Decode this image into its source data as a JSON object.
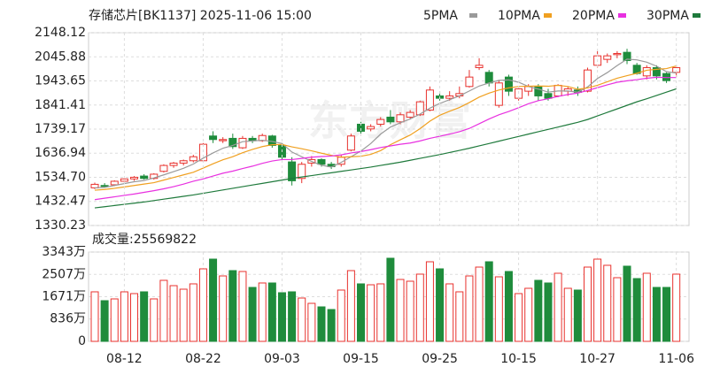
{
  "chart_data": [
    {
      "type": "candlestick",
      "title": "存储芯片[BK1137] 2025-11-06 15:00",
      "watermark": "东方财富",
      "up_color": "#e8322e",
      "down_color": "#1f8c3c",
      "open": [
        1490,
        1500,
        1503,
        1518,
        1528,
        1540,
        1530,
        1560,
        1585,
        1595,
        1605,
        1605,
        1710,
        1690,
        1700,
        1660,
        1700,
        1690,
        1710,
        1670,
        1600,
        1530,
        1595,
        1610,
        1590,
        1590,
        1650,
        1760,
        1740,
        1760,
        1790,
        1770,
        1790,
        1800,
        1820,
        1880,
        1870,
        1880,
        1920,
        2000,
        1980,
        1840,
        1960,
        1870,
        1900,
        1920,
        1890,
        1880,
        1900,
        1905,
        1900,
        2010,
        2035,
        2055,
        2065,
        2010,
        1965,
        2000,
        1975,
        1980
      ],
      "high": [
        1512,
        1510,
        1522,
        1532,
        1540,
        1548,
        1552,
        1590,
        1600,
        1610,
        1630,
        1680,
        1730,
        1705,
        1720,
        1710,
        1710,
        1720,
        1715,
        1680,
        1620,
        1600,
        1625,
        1615,
        1600,
        1630,
        1720,
        1770,
        1760,
        1790,
        1820,
        1810,
        1820,
        1860,
        1920,
        1900,
        1900,
        1920,
        1990,
        2040,
        1990,
        1945,
        1970,
        1920,
        1930,
        1930,
        1910,
        1930,
        1920,
        1920,
        2000,
        2070,
        2060,
        2070,
        2080,
        2020,
        2010,
        2010,
        1980,
        2010
      ],
      "low": [
        1485,
        1492,
        1498,
        1512,
        1520,
        1525,
        1525,
        1555,
        1575,
        1585,
        1598,
        1600,
        1680,
        1680,
        1655,
        1655,
        1680,
        1685,
        1660,
        1610,
        1500,
        1510,
        1580,
        1580,
        1570,
        1580,
        1645,
        1720,
        1730,
        1750,
        1760,
        1760,
        1780,
        1795,
        1815,
        1860,
        1860,
        1870,
        1915,
        1990,
        1920,
        1830,
        1880,
        1860,
        1880,
        1860,
        1860,
        1875,
        1880,
        1880,
        1895,
        2000,
        2020,
        2040,
        2015,
        1970,
        1950,
        1950,
        1935,
        1960
      ],
      "close": [
        1505,
        1496,
        1518,
        1528,
        1535,
        1530,
        1548,
        1585,
        1595,
        1605,
        1622,
        1675,
        1695,
        1695,
        1665,
        1700,
        1690,
        1712,
        1670,
        1620,
        1520,
        1590,
        1610,
        1590,
        1580,
        1620,
        1710,
        1730,
        1750,
        1780,
        1770,
        1800,
        1810,
        1855,
        1905,
        1870,
        1880,
        1890,
        1960,
        2010,
        1935,
        1935,
        1900,
        1910,
        1920,
        1880,
        1870,
        1925,
        1910,
        1895,
        1990,
        2050,
        2050,
        2060,
        2030,
        1975,
        2000,
        1965,
        1945,
        2000
      ],
      "ylim": [
        1330.23,
        2148.12
      ],
      "yticks": [
        1330.23,
        1432.47,
        {
          "value": 1534.7,
          "label": "1534.70"
        },
        1636.94,
        1739.17,
        1841.41,
        1943.65,
        2045.88,
        2148.12
      ],
      "grid": true,
      "series": [
        {
          "name": "5PMA",
          "color": "#9a9a9a",
          "values": [
            1490,
            1492,
            1500,
            1508,
            1516,
            1521,
            1532,
            1545,
            1559,
            1573,
            1591,
            1616,
            1638,
            1658,
            1670,
            1686,
            1689,
            1692,
            1687,
            1678,
            1642,
            1622,
            1602,
            1586,
            1578,
            1598,
            1622,
            1646,
            1678,
            1718,
            1748,
            1766,
            1782,
            1803,
            1828,
            1848,
            1864,
            1880,
            1901,
            1922,
            1935,
            1946,
            1948,
            1938,
            1920,
            1909,
            1896,
            1901,
            1901,
            1896,
            1918,
            1954,
            1979,
            2009,
            2036,
            2033,
            2023,
            2006,
            1983,
            1977
          ]
        },
        {
          "name": "10PMA",
          "color": "#f0a020",
          "values": [
            1480,
            1483,
            1488,
            1494,
            1500,
            1506,
            1512,
            1523,
            1534,
            1545,
            1556,
            1574,
            1592,
            1609,
            1622,
            1639,
            1653,
            1665,
            1673,
            1674,
            1664,
            1656,
            1647,
            1637,
            1628,
            1620,
            1622,
            1624,
            1632,
            1648,
            1673,
            1694,
            1714,
            1741,
            1773,
            1798,
            1815,
            1831,
            1852,
            1875,
            1892,
            1905,
            1914,
            1920,
            1921,
            1922,
            1921,
            1925,
            1920,
            1908,
            1914,
            1925,
            1940,
            1955,
            1966,
            1976,
            1989,
            1993,
            1996,
            2007
          ]
        },
        {
          "name": "20PMA",
          "color": "#e830e0",
          "values": [
            1440,
            1446,
            1452,
            1458,
            1464,
            1471,
            1478,
            1486,
            1495,
            1506,
            1518,
            1528,
            1540,
            1552,
            1561,
            1572,
            1582,
            1594,
            1604,
            1610,
            1610,
            1615,
            1620,
            1623,
            1625,
            1630,
            1638,
            1644,
            1652,
            1661,
            1668,
            1675,
            1680,
            1689,
            1700,
            1709,
            1718,
            1728,
            1742,
            1762,
            1782,
            1800,
            1814,
            1830,
            1847,
            1860,
            1868,
            1878,
            1886,
            1892,
            1903,
            1915,
            1927,
            1938,
            1944,
            1949,
            1955,
            1959,
            1958,
            1958
          ]
        },
        {
          "name": "30PMA",
          "color": "#1f7a3c",
          "values": [
            1405,
            1410,
            1415,
            1420,
            1425,
            1430,
            1436,
            1442,
            1448,
            1454,
            1460,
            1467,
            1474,
            1481,
            1488,
            1495,
            1502,
            1509,
            1516,
            1523,
            1530,
            1536,
            1542,
            1548,
            1554,
            1560,
            1566,
            1572,
            1578,
            1585,
            1592,
            1599,
            1607,
            1615,
            1623,
            1631,
            1640,
            1649,
            1658,
            1668,
            1678,
            1688,
            1698,
            1708,
            1718,
            1728,
            1738,
            1748,
            1758,
            1768,
            1780,
            1795,
            1810,
            1825,
            1840,
            1855,
            1868,
            1882,
            1896,
            1910
          ]
        }
      ]
    },
    {
      "type": "bar",
      "title": "成交量:25569822",
      "categories": [
        null,
        null,
        null,
        "08-12",
        null,
        null,
        null,
        null,
        null,
        null,
        null,
        "08-22",
        null,
        null,
        null,
        null,
        null,
        null,
        null,
        "09-03",
        null,
        null,
        null,
        null,
        null,
        null,
        null,
        "09-15",
        null,
        null,
        null,
        null,
        null,
        null,
        null,
        "09-25",
        null,
        null,
        null,
        null,
        null,
        null,
        null,
        "10-15",
        null,
        null,
        null,
        null,
        null,
        null,
        null,
        "10-27",
        null,
        null,
        null,
        null,
        null,
        null,
        null,
        "11-06"
      ],
      "values": [
        1854,
        1523,
        1589,
        1854,
        1788,
        1854,
        1589,
        2284,
        2085,
        1953,
        2152,
        2714,
        3078,
        2449,
        2648,
        2615,
        2019,
        2185,
        2185,
        1821,
        1854,
        1622,
        1423,
        1291,
        1192,
        1920,
        2648,
        2152,
        2118,
        2152,
        3111,
        2317,
        2251,
        2516,
        2979,
        2714,
        2152,
        1854,
        2449,
        2780,
        2979,
        2416,
        2615,
        1788,
        1986,
        2284,
        2185,
        2549,
        1986,
        1920,
        2780,
        3078,
        2847,
        2383,
        2814,
        2350,
        2549,
        2019,
        2019,
        2516
      ],
      "ylim": [
        0,
        3343
      ],
      "yticks": [
        0,
        {
          "value": 836,
          "label": "836万"
        },
        {
          "value": 1671,
          "label": "1671万"
        },
        {
          "value": 2507,
          "label": "2507万"
        },
        {
          "value": 3343,
          "label": "3343万"
        }
      ],
      "grid": true
    }
  ]
}
